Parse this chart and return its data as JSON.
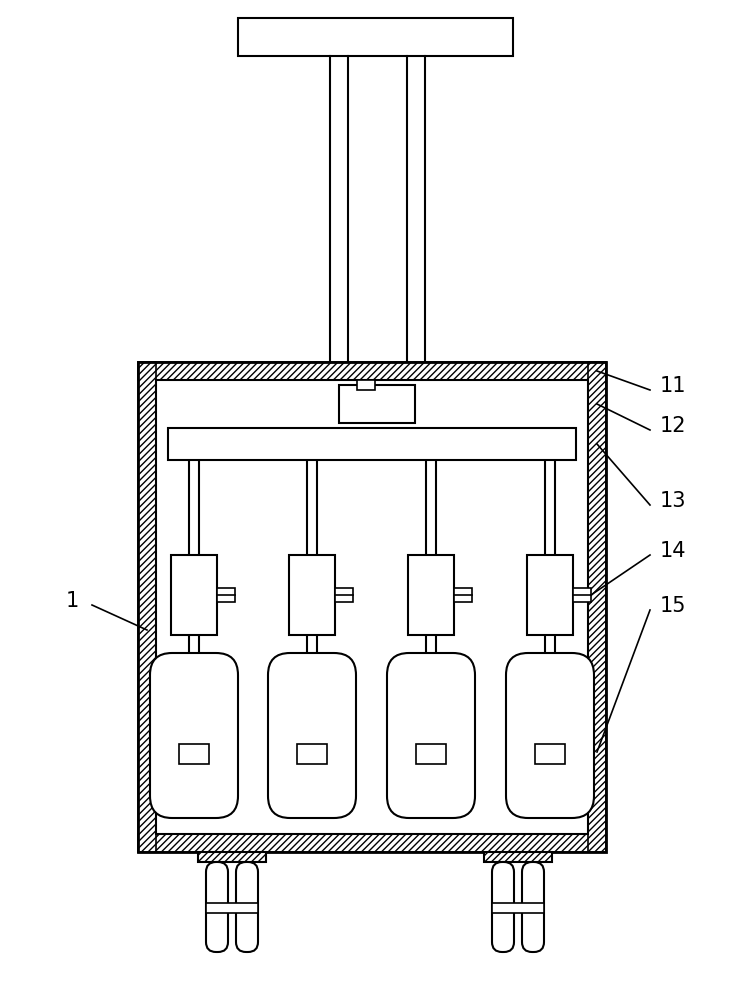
{
  "bg_color": "#ffffff",
  "line_color": "#000000",
  "figsize": [
    7.55,
    10.0
  ],
  "dpi": 100,
  "label_fontsize": 15
}
